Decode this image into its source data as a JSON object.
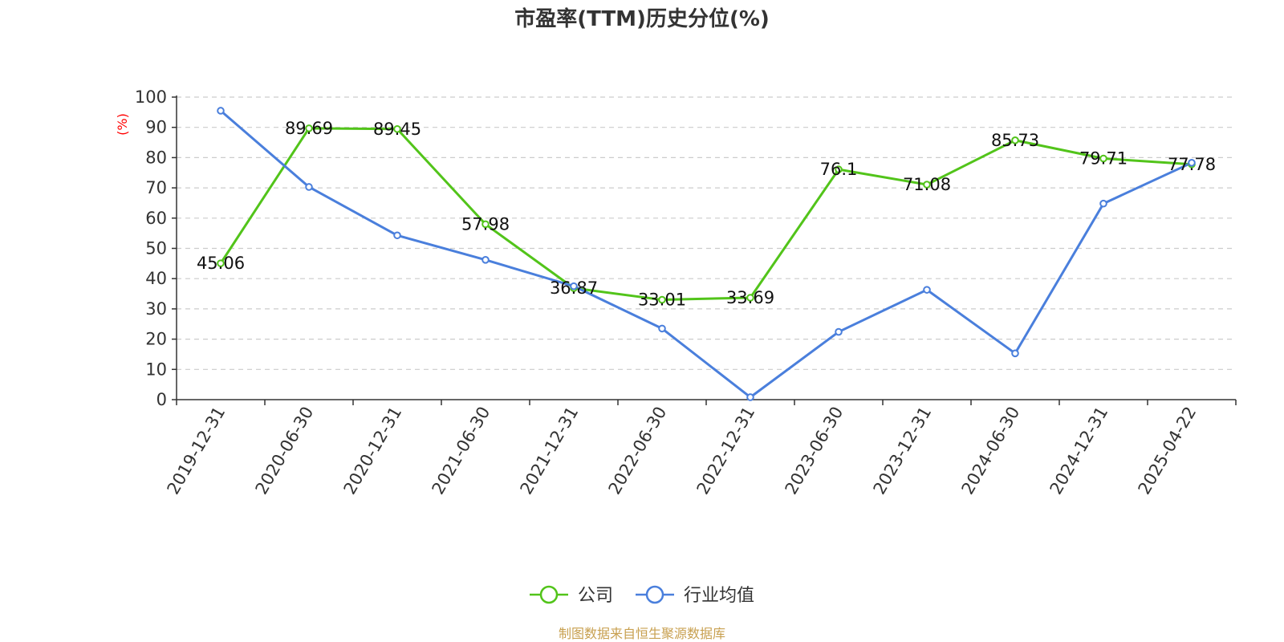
{
  "chart_data": {
    "type": "line",
    "title": "市盈率(TTM)历史分位(%)",
    "ylabel": "(%)",
    "ylim": [
      0,
      100
    ],
    "yticks": [
      0,
      10,
      20,
      30,
      40,
      50,
      60,
      70,
      80,
      90,
      100
    ],
    "categories": [
      "2019-12-31",
      "2020-06-30",
      "2020-12-31",
      "2021-06-30",
      "2021-12-31",
      "2022-06-30",
      "2022-12-31",
      "2023-06-30",
      "2023-12-31",
      "2024-06-30",
      "2024-12-31",
      "2025-04-22"
    ],
    "grid": true,
    "legend_position": "bottom-center",
    "series": [
      {
        "name": "公司",
        "color": "#52c41a",
        "values": [
          45.06,
          89.69,
          89.45,
          57.98,
          36.87,
          33.01,
          33.69,
          76.1,
          71.08,
          85.73,
          79.71,
          77.78
        ],
        "labels": [
          "45.06",
          "89.69",
          "89.45",
          "57.98",
          "36.87",
          "33.01",
          "33.69",
          "76.1",
          "71.08",
          "85.73",
          "79.71",
          "77.78"
        ]
      },
      {
        "name": "行业均值",
        "color": "#4a7fdc",
        "values": [
          95.5,
          70.3,
          54.3,
          46.2,
          37.5,
          23.5,
          0.8,
          22.4,
          36.3,
          15.3,
          64.8,
          78.3
        ]
      }
    ]
  },
  "colors": {
    "ylabel": "#ff0000",
    "source": "#c8a050",
    "axis": "#333333",
    "grid": "#cccccc"
  },
  "source_text": "制图数据来自恒生聚源数据库"
}
